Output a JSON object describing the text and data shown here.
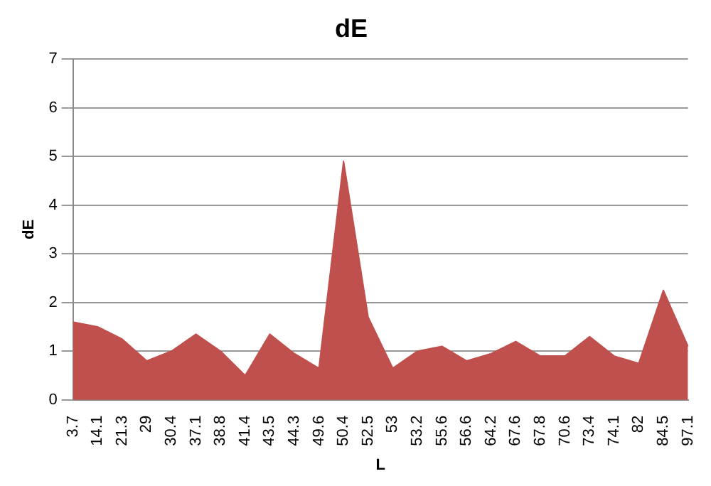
{
  "chart_data": {
    "type": "area",
    "title": "dE",
    "xlabel": "L",
    "ylabel": "dE",
    "categories": [
      "3.7",
      "14.1",
      "21.3",
      "29",
      "30.4",
      "37.1",
      "38.8",
      "41.4",
      "43.5",
      "44.3",
      "49.6",
      "50.4",
      "52.5",
      "53",
      "53.2",
      "55.6",
      "56.6",
      "64.2",
      "67.6",
      "67.8",
      "70.6",
      "73.4",
      "74.1",
      "82",
      "84.5",
      "97.1"
    ],
    "series": [
      {
        "color": "#c0504d",
        "values": [
          1.6,
          1.5,
          1.25,
          0.8,
          1.0,
          1.35,
          1.0,
          0.5,
          1.35,
          0.95,
          0.65,
          4.9,
          1.7,
          0.65,
          1.0,
          1.1,
          0.8,
          0.95,
          1.2,
          0.9,
          0.9,
          1.3,
          0.9,
          0.75,
          2.25,
          1.1
        ]
      }
    ],
    "ylim": [
      0,
      7
    ],
    "yticks": [
      0,
      1,
      2,
      3,
      4,
      5,
      6,
      7
    ],
    "grid": "y",
    "legend": false
  }
}
